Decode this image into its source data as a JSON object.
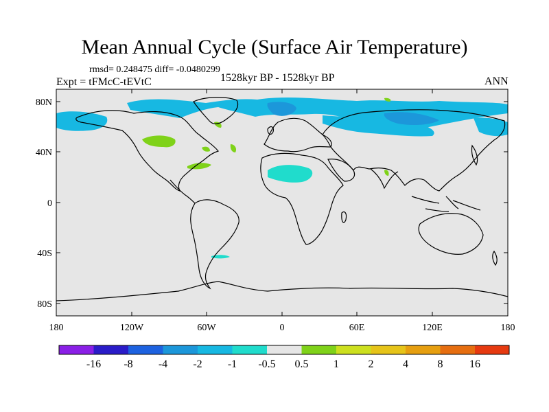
{
  "title": "Mean Annual Cycle (Surface Air Temperature)",
  "stats": "rmsd= 0.248475  diff= -0.0480299",
  "experiment": "Expt = tFMcC-tEVtC",
  "period": "1528kyr BP - 1528kyr BP",
  "season": "ANN",
  "axes": {
    "lat_ticks": [
      "80N",
      "40N",
      "0",
      "40S",
      "80S"
    ],
    "lon_ticks": [
      "180",
      "120W",
      "60W",
      "0",
      "60E",
      "120E",
      "180"
    ]
  },
  "colorbar": {
    "colors": [
      "#8a1fe6",
      "#2a1cc8",
      "#1d62e0",
      "#1c97da",
      "#17b8e2",
      "#20dccc",
      "#e6e6e6",
      "#7fd219",
      "#cde01f",
      "#e6c419",
      "#e69f10",
      "#e66e10",
      "#e63a10"
    ],
    "labels": [
      "-16",
      "-8",
      "-4",
      "-2",
      "-1",
      "-0.5",
      "0.5",
      "1",
      "2",
      "4",
      "8",
      "16"
    ]
  },
  "colors": {
    "land_outline": "#000000",
    "ocean_fill": "#e6e6e6"
  }
}
